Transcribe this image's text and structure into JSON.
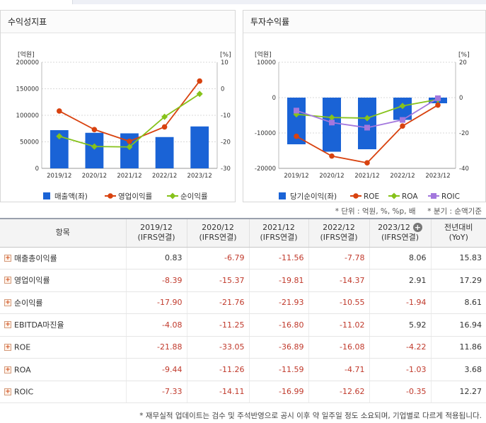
{
  "left_panel": {
    "title": "수익성지표"
  },
  "right_panel": {
    "title": "투자수익률"
  },
  "unit_note": "* 단위 : 억원, %, %p, 배",
  "period_note": "* 분기 : 순액기준",
  "chart_data": [
    {
      "type": "bar",
      "title": "수익성지표",
      "categories": [
        "2019/12",
        "2020/12",
        "2021/12",
        "2022/12",
        "2023/12"
      ],
      "left_axis": {
        "label": "[억원]",
        "ylim": [
          0,
          200000
        ],
        "ticks": [
          "200000",
          "150000",
          "100000",
          "50000",
          "0"
        ]
      },
      "right_axis": {
        "label": "[%]",
        "ylim": [
          -30,
          10
        ],
        "ticks": [
          "10",
          "0",
          "-10",
          "-20",
          "-30"
        ]
      },
      "series": [
        {
          "name": "매출액(좌)",
          "kind": "bar",
          "axis": "left",
          "color": "#1a63d6",
          "values": [
            72000,
            67000,
            66000,
            59000,
            79000
          ]
        },
        {
          "name": "영업이익률",
          "kind": "line",
          "axis": "right",
          "color": "#d8420f",
          "values": [
            -8.39,
            -15.37,
            -19.81,
            -14.37,
            2.91
          ]
        },
        {
          "name": "순이익률",
          "kind": "line",
          "axis": "right",
          "color": "#86c21a",
          "values": [
            -17.9,
            -21.76,
            -21.93,
            -10.55,
            -1.94
          ]
        }
      ],
      "legend": "bottom",
      "grid": true
    },
    {
      "type": "bar",
      "title": "투자수익률",
      "categories": [
        "2019/12",
        "2020/12",
        "2021/12",
        "2022/12",
        "2023/12"
      ],
      "left_axis": {
        "label": "[억원]",
        "ylim": [
          -20000,
          10000
        ],
        "ticks": [
          "10000",
          "0",
          "-10000",
          "-20000"
        ]
      },
      "right_axis": {
        "label": "[%]",
        "ylim": [
          -40,
          20
        ],
        "ticks": [
          "20",
          "0",
          "-20",
          "-40"
        ]
      },
      "series": [
        {
          "name": "당기순이익(좌)",
          "kind": "bar",
          "axis": "left",
          "color": "#1a63d6",
          "values": [
            -13200,
            -15300,
            -14600,
            -6300,
            -1600
          ]
        },
        {
          "name": "ROE",
          "kind": "line",
          "axis": "right",
          "color": "#d8420f",
          "values": [
            -21.88,
            -33.05,
            -36.89,
            -16.08,
            -4.22
          ]
        },
        {
          "name": "ROA",
          "kind": "line",
          "axis": "right",
          "color": "#86c21a",
          "values": [
            -9.44,
            -11.26,
            -11.59,
            -4.71,
            -1.03
          ]
        },
        {
          "name": "ROIC",
          "kind": "line",
          "axis": "right",
          "color": "#a377dd",
          "values": [
            -7.33,
            -14.11,
            -16.99,
            -12.62,
            -0.35
          ]
        }
      ],
      "legend": "bottom",
      "grid": true
    }
  ],
  "table": {
    "headers": [
      {
        "line1": "항목",
        "line2": ""
      },
      {
        "line1": "2019/12",
        "line2": "(IFRS연결)"
      },
      {
        "line1": "2020/12",
        "line2": "(IFRS연결)"
      },
      {
        "line1": "2021/12",
        "line2": "(IFRS연결)"
      },
      {
        "line1": "2022/12",
        "line2": "(IFRS연결)"
      },
      {
        "line1": "2023/12",
        "line2": "(IFRS연결)"
      },
      {
        "line1": "전년대비",
        "line2": "(YoY)"
      }
    ],
    "rows": [
      {
        "label": "매출총이익률",
        "values": [
          "0.83",
          "-6.79",
          "-11.56",
          "-7.78",
          "8.06",
          "15.83"
        ]
      },
      {
        "label": "영업이익률",
        "values": [
          "-8.39",
          "-15.37",
          "-19.81",
          "-14.37",
          "2.91",
          "17.29"
        ]
      },
      {
        "label": "순이익률",
        "values": [
          "-17.90",
          "-21.76",
          "-21.93",
          "-10.55",
          "-1.94",
          "8.61"
        ]
      },
      {
        "label": "EBITDA마진율",
        "values": [
          "-4.08",
          "-11.25",
          "-16.80",
          "-11.02",
          "5.92",
          "16.94"
        ]
      },
      {
        "label": "ROE",
        "values": [
          "-21.88",
          "-33.05",
          "-36.89",
          "-16.08",
          "-4.22",
          "11.86"
        ]
      },
      {
        "label": "ROA",
        "values": [
          "-9.44",
          "-11.26",
          "-11.59",
          "-4.71",
          "-1.03",
          "3.68"
        ]
      },
      {
        "label": "ROIC",
        "values": [
          "-7.33",
          "-14.11",
          "-16.99",
          "-12.62",
          "-0.35",
          "12.27"
        ]
      }
    ]
  },
  "footnote": "* 재무실적 업데이트는 검수 및 주석반영으로 공시 이후 약 일주일 정도 소요되며, 기업별로 다르게 적용됩니다."
}
